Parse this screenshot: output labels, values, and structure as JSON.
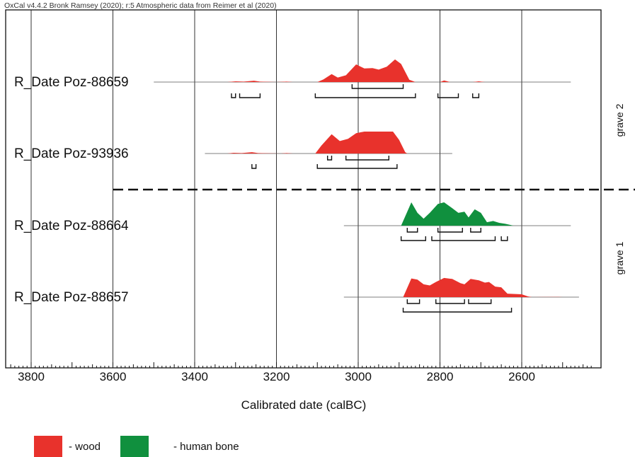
{
  "header": "OxCal v4.4.2 Bronk Ramsey (2020); r:5 Atmospheric data from Reimer et al (2020)",
  "colors": {
    "wood": "#e8322c",
    "human_bone": "#10903e",
    "frame": "#111111"
  },
  "chart_data": {
    "type": "area",
    "xlabel": "Calibrated date (calBC)",
    "xlim": [
      3870,
      2410
    ],
    "x_reversed": true,
    "x_ticks": [
      3800,
      3600,
      3400,
      3200,
      3000,
      2800,
      2600
    ],
    "x_tick_labels": [
      "3800",
      "3600",
      "3400",
      "3200",
      "3000",
      "2800",
      "2600"
    ],
    "grid": "vertical at major ticks",
    "groups": [
      {
        "label": "grave 2",
        "series": [
          0,
          1
        ]
      },
      {
        "label": "grave 1",
        "series": [
          2,
          3
        ]
      }
    ],
    "series": [
      {
        "name": "R_Date Poz-88659",
        "material": "wood",
        "baseline_range": [
          3500,
          2480
        ],
        "density": [
          [
            3320,
            0
          ],
          [
            3300,
            0.03
          ],
          [
            3280,
            0.02
          ],
          [
            3255,
            0.06
          ],
          [
            3240,
            0.02
          ],
          [
            3200,
            0
          ],
          [
            3175,
            0.02
          ],
          [
            3160,
            0
          ],
          [
            3100,
            0
          ],
          [
            3085,
            0.12
          ],
          [
            3065,
            0.35
          ],
          [
            3050,
            0.2
          ],
          [
            3030,
            0.3
          ],
          [
            3005,
            0.78
          ],
          [
            2985,
            0.6
          ],
          [
            2965,
            0.62
          ],
          [
            2950,
            0.55
          ],
          [
            2930,
            0.68
          ],
          [
            2910,
            1.0
          ],
          [
            2895,
            0.8
          ],
          [
            2875,
            0.1
          ],
          [
            2860,
            0
          ],
          [
            2800,
            0
          ],
          [
            2790,
            0.07
          ],
          [
            2775,
            0
          ],
          [
            2720,
            0
          ],
          [
            2705,
            0.03
          ],
          [
            2690,
            0
          ]
        ],
        "range_68": [
          [
            3015,
            2890
          ]
        ],
        "range_95": [
          [
            3310,
            3300
          ],
          [
            3290,
            3240
          ],
          [
            3105,
            2860
          ],
          [
            2805,
            2755
          ],
          [
            2720,
            2705
          ]
        ]
      },
      {
        "name": "R_Date Poz-93936",
        "material": "wood",
        "baseline_range": [
          3375,
          2770
        ],
        "density": [
          [
            3320,
            0
          ],
          [
            3305,
            0.03
          ],
          [
            3285,
            0.02
          ],
          [
            3260,
            0.06
          ],
          [
            3245,
            0.02
          ],
          [
            3190,
            0
          ],
          [
            3175,
            0.02
          ],
          [
            3160,
            0
          ],
          [
            3105,
            0
          ],
          [
            3090,
            0.35
          ],
          [
            3065,
            0.85
          ],
          [
            3045,
            0.55
          ],
          [
            3025,
            0.65
          ],
          [
            3005,
            0.9
          ],
          [
            2985,
            0.97
          ],
          [
            2955,
            0.97
          ],
          [
            2915,
            0.97
          ],
          [
            2900,
            0.6
          ],
          [
            2885,
            0.06
          ],
          [
            2880,
            0
          ]
        ],
        "range_68": [
          [
            3075,
            3065
          ],
          [
            3030,
            2925
          ]
        ],
        "range_95": [
          [
            3260,
            3250
          ],
          [
            3100,
            2905
          ]
        ]
      },
      {
        "name": "R_Date Poz-88664",
        "material": "human bone",
        "baseline_range": [
          3035,
          2480
        ],
        "density": [
          [
            2895,
            0
          ],
          [
            2880,
            0.6
          ],
          [
            2870,
            1.0
          ],
          [
            2855,
            0.55
          ],
          [
            2840,
            0.3
          ],
          [
            2825,
            0.55
          ],
          [
            2805,
            0.93
          ],
          [
            2790,
            1.0
          ],
          [
            2770,
            0.75
          ],
          [
            2755,
            0.55
          ],
          [
            2740,
            0.6
          ],
          [
            2730,
            0.35
          ],
          [
            2715,
            0.7
          ],
          [
            2700,
            0.55
          ],
          [
            2685,
            0.15
          ],
          [
            2670,
            0.2
          ],
          [
            2655,
            0.12
          ],
          [
            2640,
            0.08
          ],
          [
            2620,
            0
          ]
        ],
        "range_68": [
          [
            2880,
            2855
          ],
          [
            2805,
            2745
          ],
          [
            2725,
            2700
          ]
        ],
        "range_95": [
          [
            2895,
            2835
          ],
          [
            2820,
            2665
          ],
          [
            2650,
            2635
          ]
        ]
      },
      {
        "name": "R_Date Poz-88657",
        "material": "wood",
        "baseline_range": [
          3035,
          2460
        ],
        "density": [
          [
            2890,
            0
          ],
          [
            2870,
            0.8
          ],
          [
            2855,
            0.75
          ],
          [
            2840,
            0.55
          ],
          [
            2825,
            0.5
          ],
          [
            2810,
            0.65
          ],
          [
            2790,
            0.82
          ],
          [
            2770,
            0.78
          ],
          [
            2750,
            0.6
          ],
          [
            2740,
            0.55
          ],
          [
            2725,
            0.78
          ],
          [
            2705,
            0.72
          ],
          [
            2690,
            0.62
          ],
          [
            2680,
            0.65
          ],
          [
            2665,
            0.45
          ],
          [
            2650,
            0.42
          ],
          [
            2635,
            0.15
          ],
          [
            2600,
            0.12
          ],
          [
            2585,
            0.03
          ],
          [
            2575,
            0
          ],
          [
            2510,
            0.01
          ],
          [
            2500,
            0
          ]
        ],
        "range_68": [
          [
            2880,
            2850
          ],
          [
            2810,
            2740
          ],
          [
            2730,
            2675
          ]
        ],
        "range_95": [
          [
            2890,
            2625
          ]
        ]
      }
    ]
  },
  "legend": [
    {
      "color_key": "wood",
      "label": "- wood"
    },
    {
      "color_key": "human_bone",
      "label": "- human bone"
    }
  ]
}
